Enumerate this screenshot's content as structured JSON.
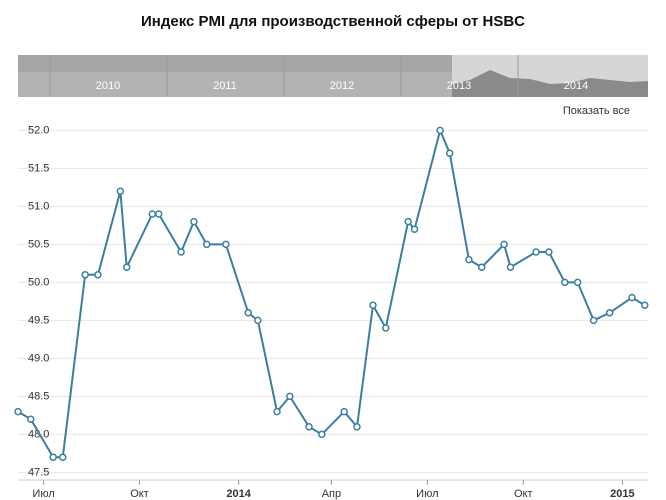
{
  "chart_data": {
    "type": "line",
    "title": "Индекс PMI для производственной сферы от HSBC",
    "navigator_labels": [
      "2010",
      "2011",
      "2012",
      "2013",
      "2014"
    ],
    "button": "Показать все",
    "x": [
      -0.8,
      -0.4,
      0.3,
      0.6,
      1.3,
      1.7,
      2.4,
      2.6,
      3.4,
      3.6,
      4.3,
      4.7,
      5.1,
      5.7,
      6.4,
      6.7,
      7.3,
      7.7,
      8.3,
      8.7,
      9.4,
      9.8,
      10.3,
      10.7,
      11.4,
      11.6,
      12.4,
      12.7,
      13.3,
      13.7,
      14.4,
      14.6,
      15.4,
      15.8,
      16.3,
      16.7,
      17.2,
      17.7,
      18.4,
      18.8
    ],
    "series": [
      {
        "name": "PMI",
        "color": "#3b7f9f",
        "values": [
          48.3,
          48.2,
          47.7,
          47.7,
          50.1,
          50.1,
          51.2,
          50.2,
          50.9,
          50.9,
          50.4,
          50.8,
          50.5,
          50.5,
          49.6,
          49.5,
          48.3,
          48.5,
          48.1,
          48.0,
          48.3,
          48.1,
          49.7,
          49.4,
          50.8,
          50.7,
          52.0,
          51.7,
          50.3,
          50.2,
          50.5,
          50.2,
          50.4,
          50.4,
          50.0,
          50.0,
          49.5,
          49.6,
          49.8,
          49.7
        ]
      }
    ],
    "xlim": [
      -0.8,
      18.9
    ],
    "xticks": [
      {
        "value": 0,
        "label": "Июл"
      },
      {
        "value": 3,
        "label": "Окт"
      },
      {
        "value": 6.1,
        "label": "2014"
      },
      {
        "value": 9,
        "label": "Апр"
      },
      {
        "value": 12,
        "label": "Июл"
      },
      {
        "value": 15,
        "label": "Окт"
      },
      {
        "value": 18.1,
        "label": "2015"
      }
    ],
    "ylim": [
      47.4,
      52.4
    ],
    "yticks": [
      47.5,
      {
        "value": 48,
        "label": "48.0"
      },
      48.5,
      {
        "value": 49,
        "label": "49.0"
      },
      49.5,
      {
        "value": 50,
        "label": "50.0"
      },
      50.5,
      {
        "value": 51,
        "label": "51.0"
      },
      51.5,
      {
        "value": 52,
        "label": "52.0"
      }
    ],
    "grid": true
  }
}
